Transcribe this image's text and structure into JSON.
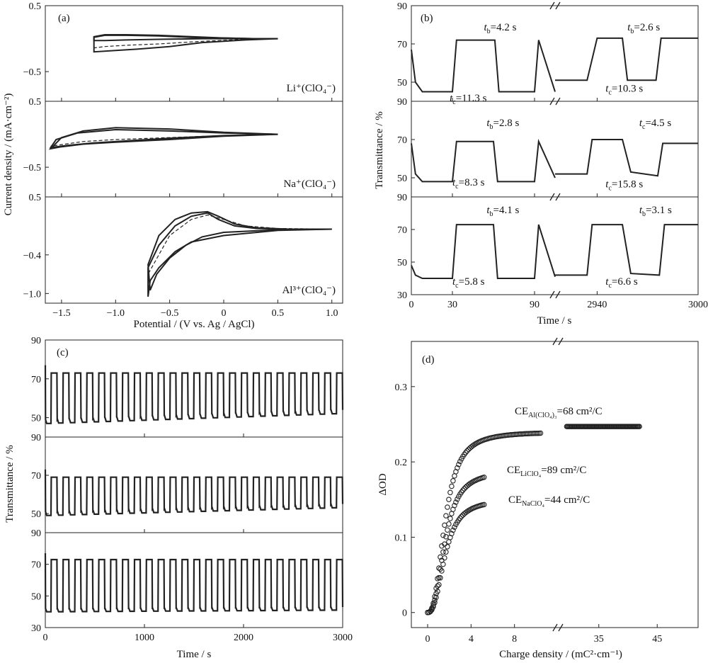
{
  "chart_data": [
    {
      "id": "a",
      "panel_label": "(a)",
      "type": "line",
      "subtype": "cyclic_voltammetry",
      "xlabel": "Potential / (V vs. Ag / AgCl)",
      "ylabel": "Current density / (mA·cm⁻²)",
      "xlim": [
        -1.65,
        1.1
      ],
      "x_ticks": [
        -1.5,
        -1.0,
        -0.5,
        0,
        0.5,
        1.0
      ],
      "x_tick_labels": [
        "−1.5",
        "−1.0",
        "−0.5",
        "0",
        "0.5",
        "1.0"
      ],
      "subplots": [
        {
          "label": "Li⁺(ClO₄⁻)",
          "ylim": [
            -0.95,
            0.5
          ],
          "y_ticks": [
            0.5,
            -0.5
          ],
          "y_tick_labels": [
            "0.5",
            "−0.5"
          ],
          "curves": [
            {
              "style": "solid",
              "x": [
                0.5,
                0.2,
                -0.2,
                -0.6,
                -0.9,
                -1.1,
                -1.2,
                -1.2,
                -1.1,
                -0.9,
                -0.6,
                -0.3,
                0.0,
                0.3,
                0.5
              ],
              "y": [
                0.0,
                0.0,
                0.0,
                -0.01,
                -0.02,
                -0.03,
                -0.03,
                0.02,
                0.05,
                0.05,
                0.04,
                0.02,
                0.01,
                0.0,
                0.0
              ]
            },
            {
              "style": "solid",
              "x": [
                0.5,
                0.2,
                -0.2,
                -0.5,
                -0.8,
                -1.0,
                -1.2,
                -1.2,
                -1.1,
                -0.9,
                -0.6,
                -0.3,
                0.0,
                0.3,
                0.5
              ],
              "y": [
                0.0,
                -0.02,
                -0.06,
                -0.12,
                -0.16,
                -0.18,
                -0.2,
                0.03,
                0.06,
                0.06,
                0.05,
                0.03,
                0.01,
                0.0,
                0.0
              ]
            },
            {
              "style": "dashed",
              "x": [
                0.5,
                0.2,
                -0.2,
                -0.6,
                -0.9,
                -1.1,
                -1.2
              ],
              "y": [
                0.0,
                -0.01,
                -0.04,
                -0.08,
                -0.1,
                -0.12,
                -0.14
              ]
            }
          ]
        },
        {
          "label": "Na⁺(ClO₄⁻)",
          "ylim": [
            -0.95,
            0.5
          ],
          "y_ticks": [
            0.5,
            -0.5
          ],
          "y_tick_labels": [
            "0.5",
            "−0.5"
          ],
          "curves": [
            {
              "style": "solid",
              "x": [
                0.5,
                0.0,
                -0.5,
                -0.9,
                -1.2,
                -1.45,
                -1.6,
                -1.55,
                -1.35,
                -1.0,
                -0.5,
                0.0,
                0.5
              ],
              "y": [
                0.0,
                -0.02,
                -0.06,
                -0.1,
                -0.13,
                -0.17,
                -0.2,
                -0.08,
                0.02,
                0.07,
                0.05,
                0.02,
                0.0
              ]
            },
            {
              "style": "solid",
              "x": [
                0.5,
                0.0,
                -0.5,
                -1.0,
                -1.3,
                -1.5,
                -1.6,
                -1.5,
                -1.3,
                -1.0,
                -0.5,
                0.0,
                0.5
              ],
              "y": [
                0.0,
                -0.03,
                -0.08,
                -0.12,
                -0.15,
                -0.19,
                -0.22,
                -0.05,
                0.05,
                0.1,
                0.08,
                0.03,
                0.0
              ]
            },
            {
              "style": "dashed",
              "x": [
                0.5,
                0.0,
                -0.5,
                -1.0,
                -1.3,
                -1.6
              ],
              "y": [
                0.0,
                -0.02,
                -0.05,
                -0.08,
                -0.11,
                -0.18
              ]
            }
          ]
        },
        {
          "label": "Al³⁺(ClO₄⁻)",
          "ylim": [
            -1.15,
            0.5
          ],
          "y_ticks": [
            0.5,
            -0.4,
            -1.0
          ],
          "y_tick_labels": [
            "0.5",
            "−0.4",
            "−1.0"
          ],
          "curves": [
            {
              "style": "solid",
              "x": [
                1.0,
                0.6,
                0.3,
                0.1,
                -0.05,
                -0.15,
                -0.3,
                -0.45,
                -0.6,
                -0.7,
                -0.7,
                -0.68,
                -0.6,
                -0.45,
                -0.3,
                0.0,
                0.5,
                1.0
              ],
              "y": [
                0.0,
                0.0,
                0.01,
                0.05,
                0.15,
                0.25,
                0.2,
                0.05,
                -0.25,
                -0.6,
                -1.05,
                -0.8,
                -0.6,
                -0.35,
                -0.2,
                -0.1,
                -0.02,
                0.0
              ]
            },
            {
              "style": "solid",
              "x": [
                1.0,
                0.6,
                0.3,
                0.1,
                -0.05,
                -0.15,
                -0.3,
                -0.45,
                -0.6,
                -0.7,
                -0.68,
                -0.62,
                -0.5,
                -0.35,
                -0.2,
                0.0,
                0.5,
                1.0
              ],
              "y": [
                0.0,
                0.0,
                0.02,
                0.08,
                0.2,
                0.27,
                0.25,
                0.15,
                -0.1,
                -0.55,
                -0.95,
                -0.7,
                -0.45,
                -0.25,
                -0.12,
                -0.05,
                -0.01,
                0.0
              ]
            },
            {
              "style": "dashed",
              "x": [
                1.0,
                0.5,
                0.2,
                0.0,
                -0.15,
                -0.3,
                -0.5,
                -0.7
              ],
              "y": [
                0.0,
                0.01,
                0.05,
                0.15,
                0.22,
                0.15,
                -0.1,
                -0.7
              ]
            }
          ]
        }
      ]
    },
    {
      "id": "b",
      "panel_label": "(b)",
      "type": "line",
      "subtype": "in_situ_transmittance",
      "xlabel": "Time / s",
      "ylabel": "Transmittance / %",
      "axis_break": true,
      "x_tick_labels": [
        "0",
        "30",
        "90",
        "2940",
        "3000"
      ],
      "x_tick_values": [
        0,
        30,
        90,
        2940,
        3000
      ],
      "x_segments": [
        [
          0,
          105
        ],
        [
          2915,
          3000
        ]
      ],
      "subplots": [
        {
          "ylim": [
            40,
            90
          ],
          "y_ticks": [
            90,
            70,
            50
          ],
          "y_tick_labels": [
            "90",
            "70",
            "50"
          ],
          "step_x": [
            0,
            3,
            8,
            30,
            33,
            61,
            64,
            90,
            93,
            105,
            2915,
            2920,
            2934,
            2940,
            2955,
            2958,
            2975,
            2978,
            2990,
            2993,
            3000
          ],
          "step_y": [
            67,
            50,
            45,
            45,
            72,
            72,
            45,
            45,
            72,
            45,
            51,
            51,
            51,
            73,
            73,
            51,
            51,
            73,
            73,
            73,
            73
          ],
          "annotations": [
            {
              "sym": "t",
              "sub": "b",
              "text": "=4.2 s",
              "x": 53,
              "y": 77
            },
            {
              "sym": "t",
              "sub": "c",
              "text": "=11.3 s",
              "x": 28,
              "y": 40
            },
            {
              "sym": "t",
              "sub": "b",
              "text": "=2.6 s",
              "x": 2958,
              "y": 77
            },
            {
              "sym": "t",
              "sub": "c",
              "text": "=10.3 s",
              "x": 2945,
              "y": 45
            }
          ]
        },
        {
          "ylim": [
            40,
            90
          ],
          "y_ticks": [
            90,
            70,
            50
          ],
          "y_tick_labels": [
            "90",
            "70",
            "50"
          ],
          "step_x": [
            0,
            3,
            8,
            30,
            33,
            60,
            63,
            90,
            93,
            105,
            2915,
            2922,
            2934,
            2937,
            2955,
            2960,
            2976,
            2979,
            3000
          ],
          "step_y": [
            68,
            52,
            48,
            48,
            69,
            69,
            48,
            48,
            69,
            50,
            52,
            52,
            52,
            70,
            70,
            53,
            51,
            68,
            68
          ],
          "annotations": [
            {
              "sym": "t",
              "sub": "b",
              "text": "=2.8 s",
              "x": 55,
              "y": 77
            },
            {
              "sym": "t",
              "sub": "c",
              "text": "=8.3 s",
              "x": 30,
              "y": 46
            },
            {
              "sym": "t",
              "sub": "c",
              "text": "=4.5 s",
              "x": 2965,
              "y": 77
            },
            {
              "sym": "t",
              "sub": "c",
              "text": "=15.8 s",
              "x": 2945,
              "y": 45
            }
          ]
        },
        {
          "ylim": [
            30,
            90
          ],
          "y_ticks": [
            90,
            70,
            50,
            30
          ],
          "y_tick_labels": [
            "90",
            "70",
            "50",
            "30"
          ],
          "step_x": [
            0,
            3,
            8,
            30,
            33,
            60,
            63,
            90,
            93,
            105,
            2915,
            2922,
            2934,
            2937,
            2955,
            2960,
            2977,
            2980,
            3000
          ],
          "step_y": [
            48,
            42,
            40,
            40,
            73,
            73,
            40,
            40,
            73,
            41,
            42,
            42,
            42,
            73,
            73,
            43,
            42,
            73,
            73
          ],
          "annotations": [
            {
              "sym": "t",
              "sub": "b",
              "text": "=4.1 s",
              "x": 55,
              "y": 80
            },
            {
              "sym": "t",
              "sub": "c",
              "text": "=5.8 s",
              "x": 30,
              "y": 36
            },
            {
              "sym": "t",
              "sub": "b",
              "text": "=3.1 s",
              "x": 2965,
              "y": 80
            },
            {
              "sym": "t",
              "sub": "c",
              "text": "=6.6 s",
              "x": 2945,
              "y": 36
            }
          ]
        }
      ]
    },
    {
      "id": "c",
      "panel_label": "(c)",
      "type": "line",
      "subtype": "cycling_transmittance",
      "xlabel": "Time / s",
      "ylabel": "Transmittance / %",
      "xlim": [
        0,
        3000
      ],
      "x_ticks": [
        0,
        1000,
        2000,
        3000
      ],
      "x_tick_labels": [
        "0",
        "1000",
        "2000",
        "3000"
      ],
      "cycles": 25,
      "subplots": [
        {
          "ylim": [
            40,
            90
          ],
          "y_ticks": [
            90,
            70,
            50
          ],
          "y_tick_labels": [
            "90",
            "70",
            "50"
          ],
          "high": 73,
          "low": 47,
          "low_end": 52
        },
        {
          "ylim": [
            40,
            90
          ],
          "y_ticks": [
            90,
            70,
            50
          ],
          "y_tick_labels": [
            "90",
            "70",
            "50"
          ],
          "high": 69,
          "low": 49,
          "low_end": 53
        },
        {
          "ylim": [
            30,
            90
          ],
          "y_ticks": [
            90,
            70,
            50,
            30
          ],
          "y_tick_labels": [
            "90",
            "70",
            "50",
            "30"
          ],
          "high": 73,
          "low": 40,
          "low_end": 41
        }
      ]
    },
    {
      "id": "d",
      "panel_label": "(d)",
      "type": "scatter",
      "xlabel": "Charge density / (mC²·cm⁻¹)",
      "ylabel": "ΔOD",
      "axis_break": true,
      "x_segments": [
        [
          -1.5,
          12
        ],
        [
          28,
          52
        ]
      ],
      "x_ticks": [
        0,
        4,
        8,
        35,
        45
      ],
      "x_tick_labels": [
        "0",
        "4",
        "8",
        "35",
        "45"
      ],
      "ylim": [
        -0.02,
        0.36
      ],
      "y_ticks": [
        0,
        0.1,
        0.2,
        0.3
      ],
      "y_tick_labels": [
        "0",
        "0.1",
        "0.2",
        "0.3"
      ],
      "series": [
        {
          "name": "Al(ClO₄)₃",
          "ce_label_main": "CE",
          "ce_label_sub": "Al(ClO₄)₃",
          "ce_label_value": "=68 cm²/C",
          "a": 0.24,
          "k": 0.45,
          "x0": 0.0,
          "x_end": 10.5,
          "plateau_from": 29.5,
          "plateau_to": 42.0,
          "plateau_value": 0.247
        },
        {
          "name": "LiClO₄",
          "ce_label_main": "CE",
          "ce_label_sub": "LiClO₄",
          "ce_label_value": "=89 cm²/C",
          "a": 0.188,
          "k": 0.62,
          "x0": 0.0,
          "x_end": 5.2
        },
        {
          "name": "NaClO₄",
          "ce_label_main": "CE",
          "ce_label_sub": "NaClO₄",
          "ce_label_value": "=44 cm²/C",
          "a": 0.15,
          "k": 0.72,
          "x0": 0.0,
          "x_end": 5.2
        }
      ]
    }
  ]
}
